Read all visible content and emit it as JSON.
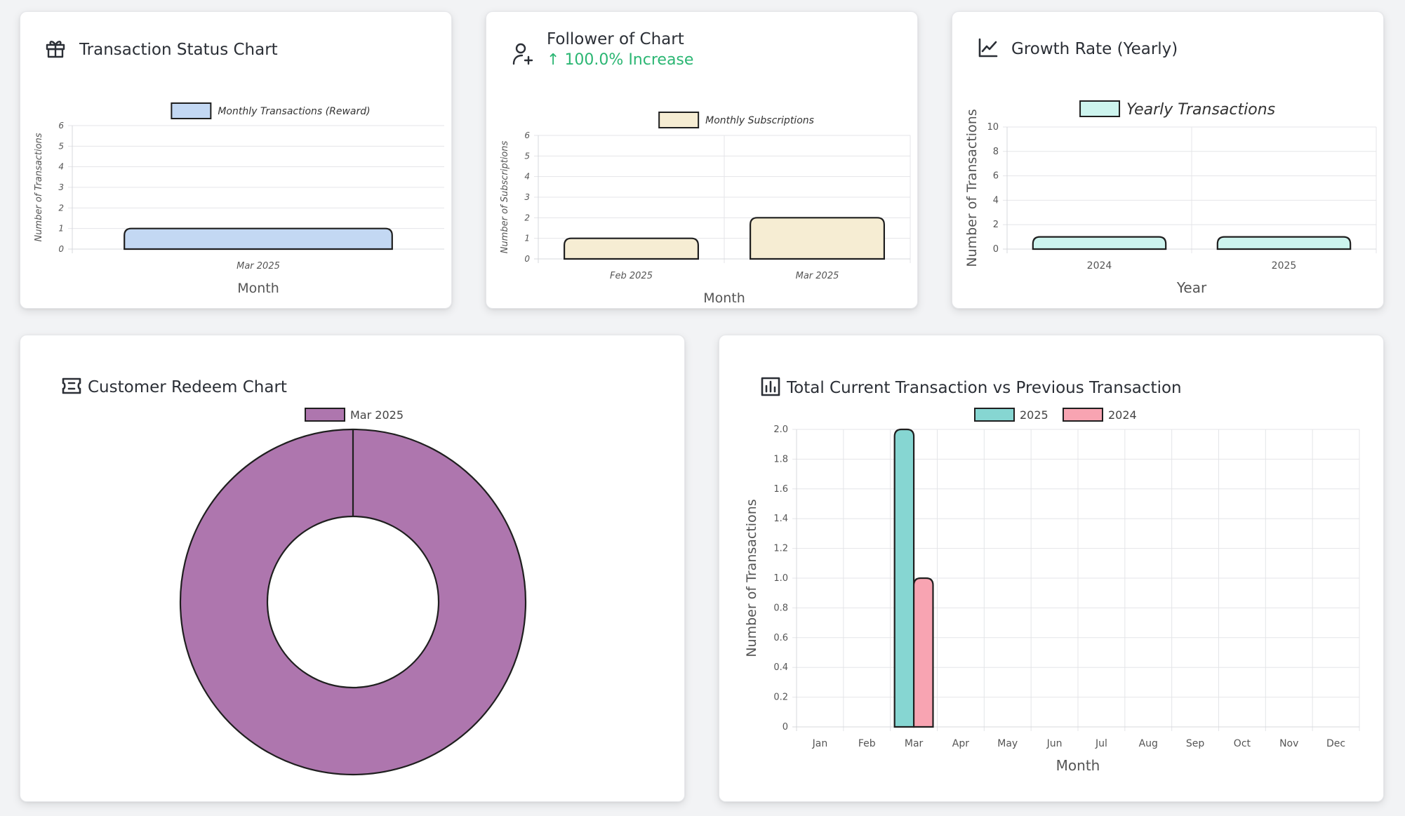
{
  "colors": {
    "bar_blue": "#c3d8f3",
    "bar_cream": "#f6edd3",
    "bar_mint": "#cdf4ee",
    "donut_purple": "#ae76ae",
    "teal": "#86d6d2",
    "pink": "#f8a4b2",
    "increase_green": "#2bb673"
  },
  "cards": {
    "transaction_status": {
      "title": "Transaction Status Chart",
      "icon": "gift-icon"
    },
    "follower": {
      "title": "Follower of Chart",
      "increase_arrow": "↑",
      "increase_text": "100.0% Increase",
      "icon": "user-plus-icon"
    },
    "growth_rate": {
      "title": "Growth Rate (Yearly)",
      "icon": "line-chart-icon"
    },
    "customer_redeem": {
      "title": "Customer Redeem Chart",
      "icon": "ticket-icon"
    },
    "total_current": {
      "title": "Total Current Transaction vs Previous Transaction",
      "icon": "bar-chart-icon"
    }
  },
  "chart_data": [
    {
      "id": "transaction_status",
      "type": "bar",
      "categories": [
        "Mar 2025"
      ],
      "series": [
        {
          "name": "Monthly Transactions (Reward)",
          "values": [
            1
          ]
        }
      ],
      "xlabel": "Month",
      "ylabel": "Number of Transactions",
      "ylim": [
        0,
        6
      ],
      "yticks": [
        "0",
        "1",
        "2",
        "3",
        "4",
        "5",
        "6"
      ],
      "legend": "top",
      "grid": true
    },
    {
      "id": "follower",
      "type": "bar",
      "categories": [
        "Feb 2025",
        "Mar 2025"
      ],
      "series": [
        {
          "name": "Monthly Subscriptions",
          "values": [
            1,
            2
          ]
        }
      ],
      "xlabel": "Month",
      "ylabel": "Number of Subscriptions",
      "ylim": [
        0,
        6
      ],
      "yticks": [
        "0",
        "1",
        "2",
        "3",
        "4",
        "5",
        "6"
      ],
      "legend": "top",
      "grid": true
    },
    {
      "id": "growth_rate",
      "type": "bar",
      "categories": [
        "2024",
        "2025"
      ],
      "series": [
        {
          "name": "Yearly Transactions",
          "values": [
            1,
            1
          ]
        }
      ],
      "xlabel": "Year",
      "ylabel": "Number of Transactions",
      "ylim": [
        0,
        10
      ],
      "yticks": [
        "0",
        "2",
        "4",
        "6",
        "8",
        "10"
      ],
      "legend": "top",
      "grid": true
    },
    {
      "id": "customer_redeem",
      "type": "pie",
      "labels": [
        "Mar 2025"
      ],
      "values": [
        1
      ],
      "legend": "top",
      "donut": true
    },
    {
      "id": "total_current",
      "type": "bar",
      "categories": [
        "Jan",
        "Feb",
        "Mar",
        "Apr",
        "May",
        "Jun",
        "Jul",
        "Aug",
        "Sep",
        "Oct",
        "Nov",
        "Dec"
      ],
      "series": [
        {
          "name": "2025",
          "values": [
            0,
            0,
            2,
            0,
            0,
            0,
            0,
            0,
            0,
            0,
            0,
            0
          ]
        },
        {
          "name": "2024",
          "values": [
            0,
            0,
            1,
            0,
            0,
            0,
            0,
            0,
            0,
            0,
            0,
            0
          ]
        }
      ],
      "xlabel": "Month",
      "ylabel": "Number of Transactions",
      "ylim": [
        0,
        2
      ],
      "yticks": [
        "0",
        "0.2",
        "0.4",
        "0.6",
        "0.8",
        "1.0",
        "1.2",
        "1.4",
        "1.6",
        "1.8",
        "2.0"
      ],
      "legend": "top",
      "grid": true
    }
  ]
}
